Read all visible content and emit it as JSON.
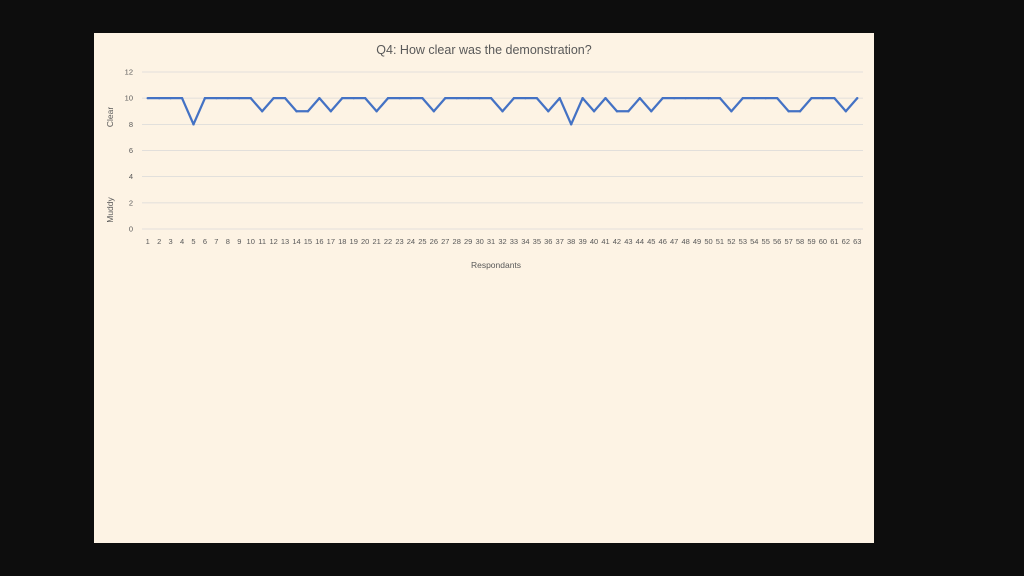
{
  "chart_data": {
    "type": "line",
    "title": "Q4: How clear was the demonstration?",
    "xlabel": "Respondants",
    "ylabel_top": "Clear",
    "ylabel_bottom": "Muddy",
    "ylim": [
      0,
      12
    ],
    "yticks": [
      0,
      2,
      4,
      6,
      8,
      10,
      12
    ],
    "grid": true,
    "legend": "none",
    "colors": {
      "line": "#4472c4",
      "grid": "#d9d9d9",
      "text": "#595959"
    },
    "x": [
      1,
      2,
      3,
      4,
      5,
      6,
      7,
      8,
      9,
      10,
      11,
      12,
      13,
      14,
      15,
      16,
      17,
      18,
      19,
      20,
      21,
      22,
      23,
      24,
      25,
      26,
      27,
      28,
      29,
      30,
      31,
      32,
      33,
      34,
      35,
      36,
      37,
      38,
      39,
      40,
      41,
      42,
      43,
      44,
      45,
      46,
      47,
      48,
      49,
      50,
      51,
      52,
      53,
      54,
      55,
      56,
      57,
      58,
      59,
      60,
      61,
      62,
      63
    ],
    "series": [
      {
        "values": [
          10,
          10,
          10,
          10,
          8,
          10,
          10,
          10,
          10,
          10,
          9,
          10,
          10,
          9,
          9,
          10,
          9,
          10,
          10,
          10,
          9,
          10,
          10,
          10,
          10,
          9,
          10,
          10,
          10,
          10,
          10,
          9,
          10,
          10,
          10,
          9,
          10,
          8,
          10,
          9,
          10,
          9,
          9,
          10,
          9,
          10,
          10,
          10,
          10,
          10,
          10,
          9,
          10,
          10,
          10,
          10,
          9,
          9,
          10,
          10,
          10,
          9,
          10
        ]
      }
    ]
  }
}
